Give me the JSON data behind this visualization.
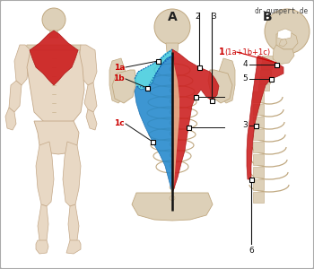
{
  "watermark": "dr-gumpert.de",
  "bg_color": "#f5f2ee",
  "border_color": "#aaaaaa",
  "label_A": "A",
  "label_B": "B",
  "body_skin": "#e8d8c4",
  "body_edge": "#c4a888",
  "bone_color": "#ddd0b8",
  "bone_edge": "#c0a880",
  "muscle_red": "#cc2222",
  "muscle_red_edge": "#aa1111",
  "muscle_blue": "#2288cc",
  "muscle_blue_edge": "#1166aa",
  "muscle_cyan": "#44ccdd",
  "muscle_cyan_edge": "#22aacc",
  "tendon_color": "#e8d0a0",
  "label_red": "#cc0000",
  "label_black": "#111111",
  "dot_fill": "#ffffff",
  "dot_edge": "#000000"
}
